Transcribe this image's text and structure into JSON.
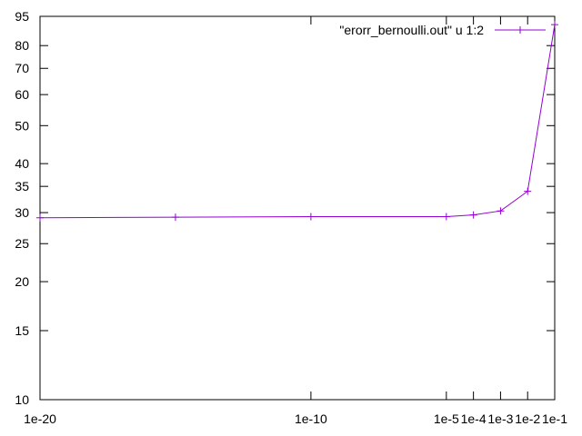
{
  "chart_data": {
    "type": "line",
    "title": "",
    "xlabel": "",
    "ylabel": "",
    "x_scale": "log",
    "y_scale": "log",
    "xlim": [
      1e-20,
      0.1
    ],
    "ylim": [
      10,
      95
    ],
    "grid": false,
    "legend_position": "top-right",
    "x_ticks": [
      {
        "value": 1e-20,
        "label": "1e-20"
      },
      {
        "value": 1e-10,
        "label": "1e-10"
      },
      {
        "value": 1e-05,
        "label": "1e-5"
      },
      {
        "value": 0.0001,
        "label": "1e-4"
      },
      {
        "value": 0.001,
        "label": "1e-3"
      },
      {
        "value": 0.01,
        "label": "1e-2"
      },
      {
        "value": 0.1,
        "label": "1e-1"
      }
    ],
    "y_ticks": [
      {
        "value": 10,
        "label": "10"
      },
      {
        "value": 15,
        "label": "15"
      },
      {
        "value": 20,
        "label": "20"
      },
      {
        "value": 25,
        "label": "25"
      },
      {
        "value": 30,
        "label": "30"
      },
      {
        "value": 35,
        "label": "35"
      },
      {
        "value": 40,
        "label": "40"
      },
      {
        "value": 50,
        "label": "50"
      },
      {
        "value": 60,
        "label": "60"
      },
      {
        "value": 70,
        "label": "70"
      },
      {
        "value": 80,
        "label": "80"
      },
      {
        "value": 95,
        "label": "95"
      }
    ],
    "series": [
      {
        "name": "\"erorr_bernoulli.out\" u 1:2",
        "color": "#9400d3",
        "marker": "plus",
        "x": [
          1e-20,
          1e-15,
          1e-10,
          1e-05,
          0.0001,
          0.001,
          0.01,
          0.1
        ],
        "y": [
          29.1,
          29.2,
          29.3,
          29.3,
          29.6,
          30.3,
          34.0,
          90.5
        ]
      }
    ]
  }
}
